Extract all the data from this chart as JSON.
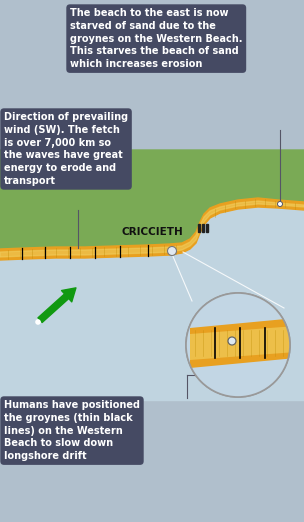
{
  "bg_color": "#b0bfcc",
  "box_color": "#454a63",
  "box_text_color": "#ffffff",
  "sand_color": "#e8a020",
  "sand_inner_color": "#f0d060",
  "land_color": "#7aaa55",
  "water_color": "#c0d4e0",
  "arrow_color": "#119911",
  "line_color": "#555566",
  "text1": "The beach to the east is now\nstarved of sand due to the\ngroynes on the Western Beach.\nThis starves the beach of sand\nwhich increases erosion",
  "text2": "Direction of prevailing\nwind (SW). The fetch\nis over 7,000 km so\nthe waves have great\nenergy to erode and\ntransport",
  "text3": "Humans have positioned\nthe groynes (thin black\nlines) on the Western\nBeach to slow down\nlongshore drift",
  "criccieth_label": "CRICCIETH",
  "figsize": [
    3.04,
    5.22
  ],
  "dpi": 100
}
